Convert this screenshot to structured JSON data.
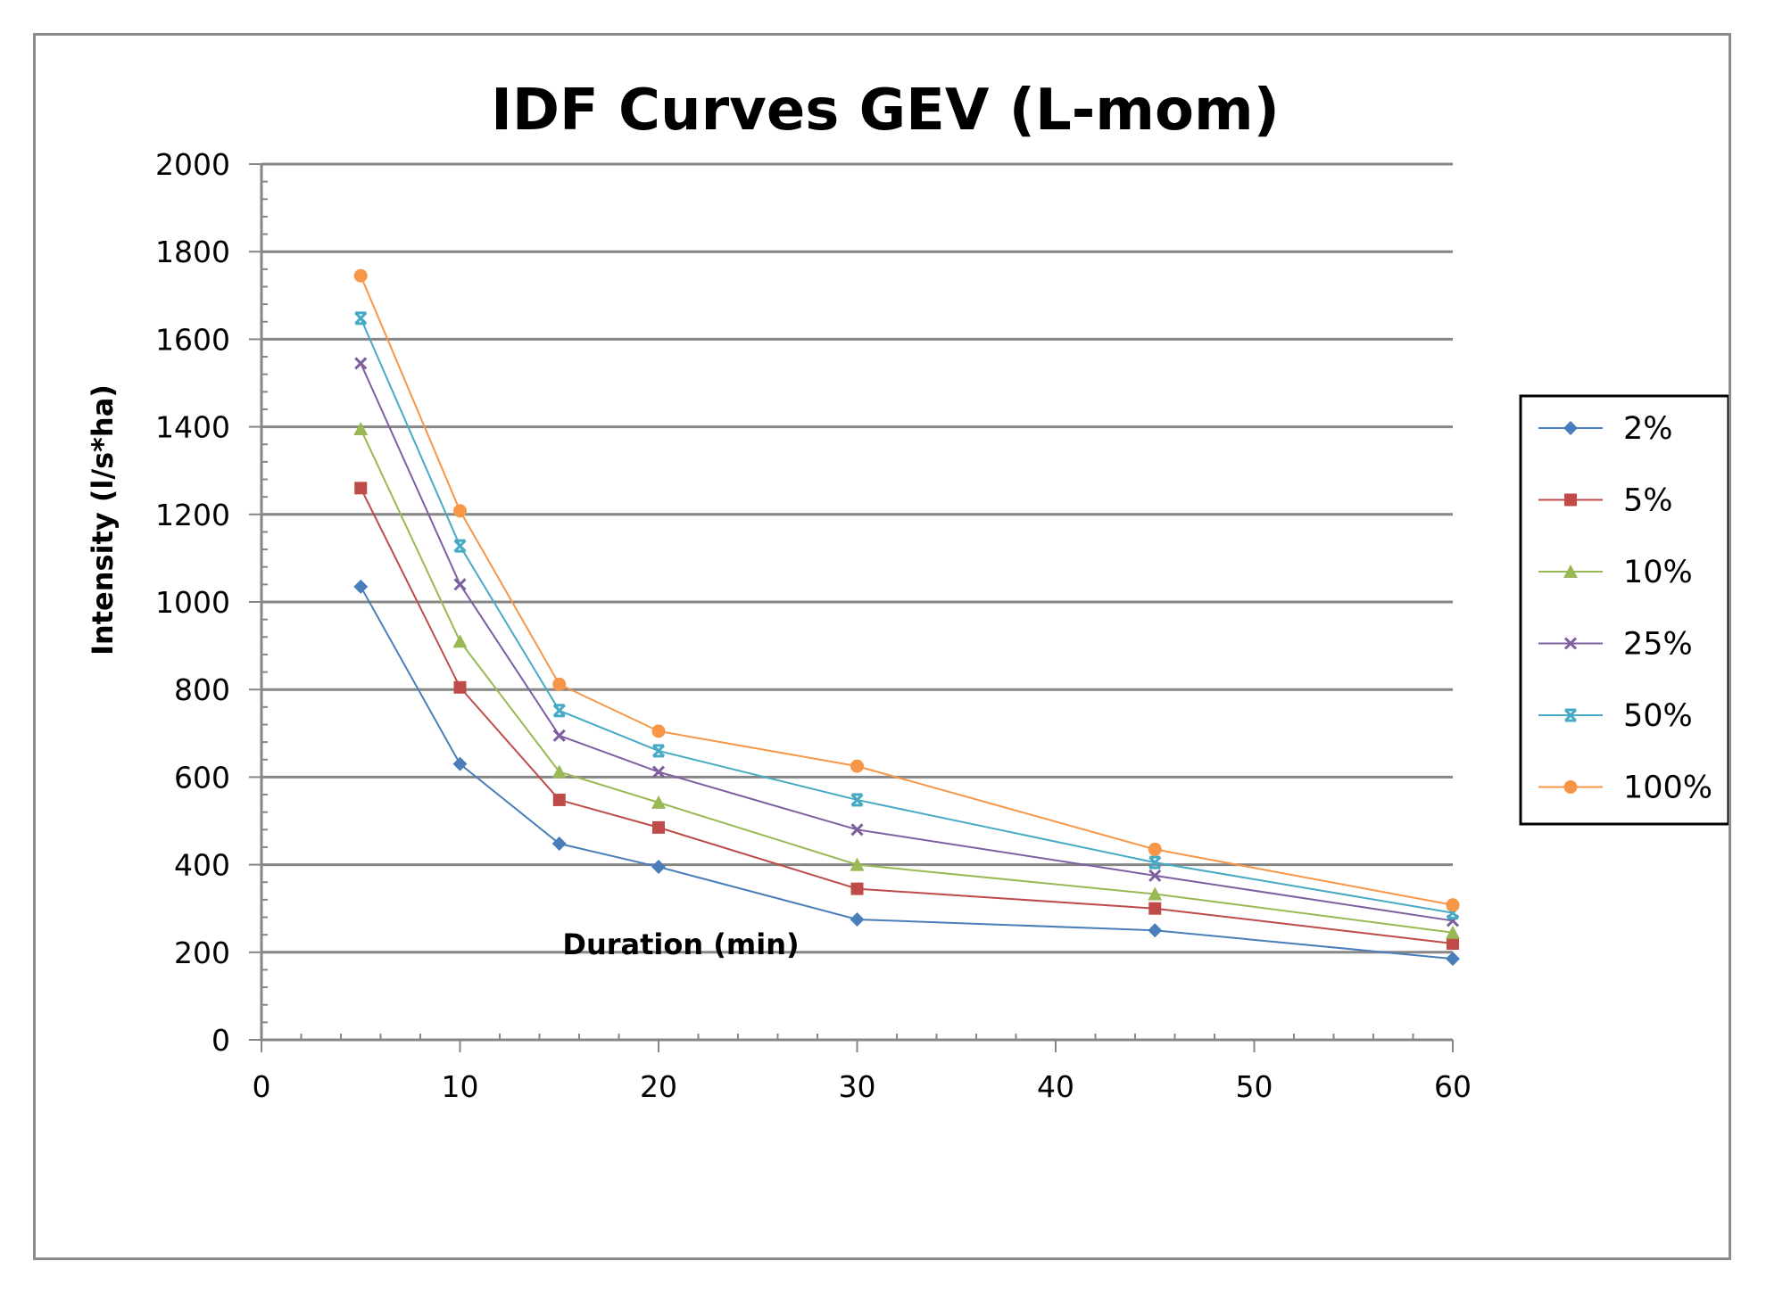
{
  "chart_data": {
    "type": "line",
    "title": "IDF Curves GEV (L-mom)",
    "xlabel": "Duration (min)",
    "ylabel": "Intensity (l/s*ha)",
    "xlim": [
      0,
      60
    ],
    "ylim": [
      0,
      2000
    ],
    "x_ticks": [
      0,
      10,
      20,
      30,
      40,
      50,
      60
    ],
    "y_ticks": [
      0,
      200,
      400,
      600,
      800,
      1000,
      1200,
      1400,
      1600,
      1800,
      2000
    ],
    "x_tick_labels": [
      "0",
      "10",
      "20",
      "30",
      "40",
      "50",
      "60"
    ],
    "y_tick_labels": [
      "0",
      "200",
      "400",
      "600",
      "800",
      "1000",
      "1200",
      "1400",
      "1600",
      "1800",
      "2000"
    ],
    "grid": "horizontal",
    "legend_position": "right",
    "x": [
      5,
      10,
      15,
      20,
      30,
      45,
      60
    ],
    "series": [
      {
        "name": "2%",
        "color": "#4a7ebb",
        "marker": "diamond",
        "values": [
          1035,
          630,
          448,
          395,
          275,
          250,
          185
        ]
      },
      {
        "name": "5%",
        "color": "#be4b48",
        "marker": "square",
        "values": [
          1260,
          805,
          548,
          485,
          345,
          300,
          220
        ]
      },
      {
        "name": "10%",
        "color": "#98b954",
        "marker": "triangle",
        "values": [
          1395,
          910,
          612,
          542,
          400,
          333,
          245
        ]
      },
      {
        "name": "25%",
        "color": "#7d5fa0",
        "marker": "x",
        "values": [
          1545,
          1040,
          695,
          612,
          480,
          375,
          272
        ]
      },
      {
        "name": "50%",
        "color": "#46aac5",
        "marker": "star",
        "values": [
          1648,
          1128,
          752,
          660,
          548,
          405,
          290
        ]
      },
      {
        "name": "100%",
        "color": "#f79646",
        "marker": "circle",
        "values": [
          1745,
          1208,
          812,
          705,
          625,
          435,
          308
        ]
      }
    ]
  }
}
